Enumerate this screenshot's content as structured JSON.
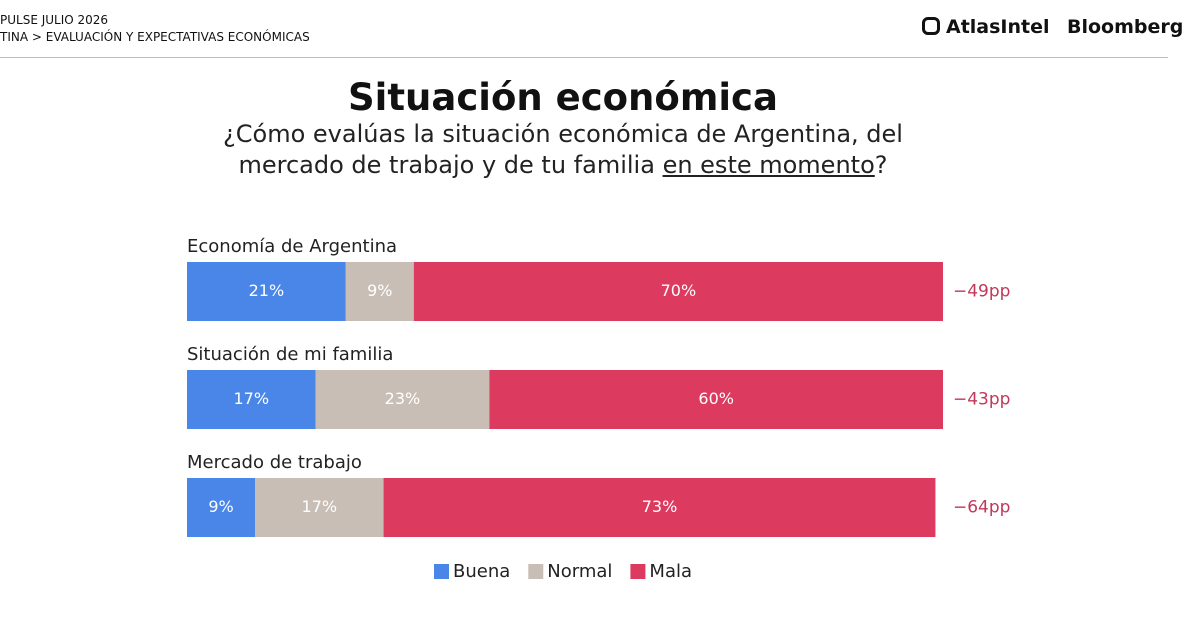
{
  "header": {
    "survey": "PULSE JULIO 2026",
    "section": "TINA > EVALUACIÓN Y EXPECTATIVAS ECONÓMICAS",
    "logo_1": "AtlasIntel",
    "logo_2": "Bloomberg"
  },
  "chart_data": {
    "type": "stacked-barh",
    "title": "Situación económica",
    "subtitle": {
      "line_1": "¿Cómo evalúas la situación económica de Argentina, del",
      "line_2": "mercado de trabajo y de tu familia",
      "emphasis": "en este momento",
      "end": "?"
    },
    "categories": [
      "Economía de Argentina",
      "Situación de mi familia",
      "Mercado de trabajo"
    ],
    "series": [
      {
        "name": "Buena",
        "color": "#4a86e8",
        "values": [
          21,
          17,
          9
        ],
        "value_labels": [
          "21%",
          "17%",
          "9%"
        ]
      },
      {
        "name": "Normal",
        "color": "#c9beb6",
        "values": [
          9,
          23,
          17
        ],
        "value_labels": [
          "9%",
          "23%",
          "17%"
        ]
      },
      {
        "name": "Mala",
        "color": "#dc3a5e",
        "values": [
          70,
          60,
          73
        ],
        "value_labels": [
          "70%",
          "60%",
          "73%"
        ]
      }
    ],
    "annotations": [
      "−49pp",
      "−43pp",
      "−64pp"
    ],
    "xlim": [
      0,
      100
    ]
  }
}
